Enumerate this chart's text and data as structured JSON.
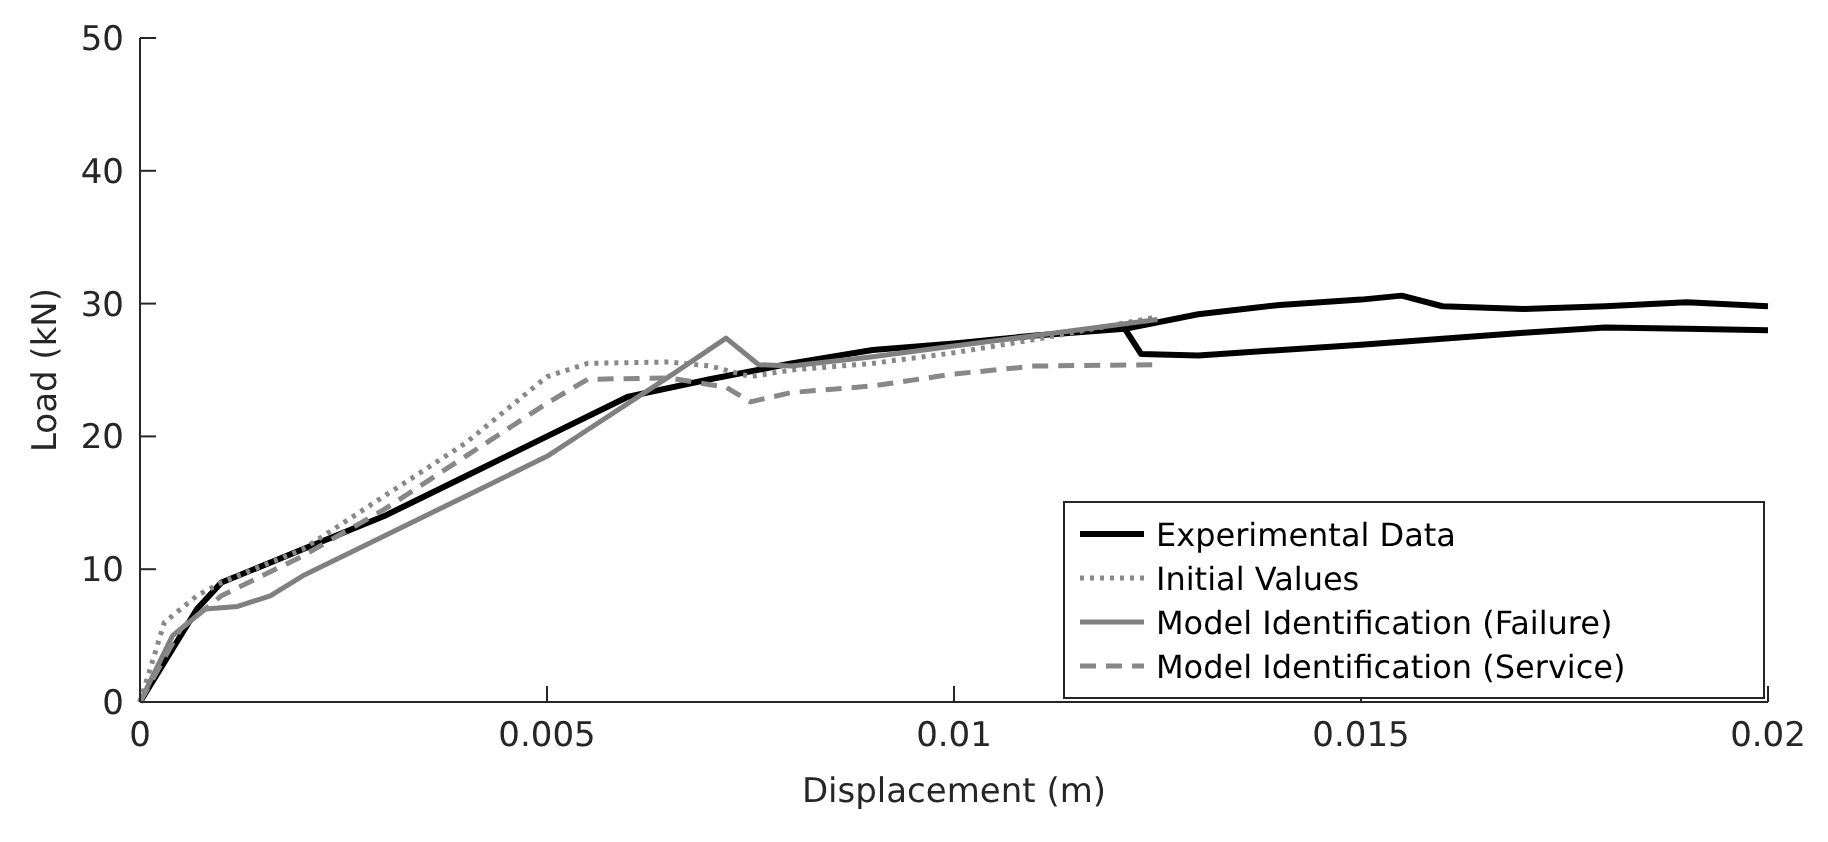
{
  "chart_data": {
    "type": "line",
    "xlabel": "Displacement (m)",
    "ylabel": "Load (kN)",
    "xlim": [
      0,
      0.02
    ],
    "ylim": [
      0,
      50
    ],
    "xticks": [
      0,
      0.005,
      0.01,
      0.015,
      0.02
    ],
    "yticks": [
      0,
      10,
      20,
      30,
      40,
      50
    ],
    "grid": false,
    "legend": "bottom right",
    "series": [
      {
        "name": "Experimental Data",
        "color": "#000000",
        "line_style": "solid",
        "x": [
          0,
          0.0007,
          0.001,
          0.002,
          0.003,
          0.004,
          0.005,
          0.006,
          0.007,
          0.008,
          0.009,
          0.01,
          0.011,
          0.0121,
          0.013,
          0.014,
          0.015,
          0.0155,
          0.016,
          0.017,
          0.018,
          0.019,
          0.02,
          null,
          0.0121,
          0.0123,
          0.013,
          0.015,
          0.017,
          0.018,
          0.019,
          0.02
        ],
        "values": [
          0,
          7,
          9,
          11.5,
          14,
          17,
          20,
          23,
          24.3,
          25.5,
          26.5,
          27,
          27.6,
          28.1,
          29.2,
          29.9,
          30.3,
          30.6,
          29.8,
          29.6,
          29.8,
          30.1,
          29.8,
          null,
          28.1,
          26.2,
          26.1,
          26.9,
          27.8,
          28.2,
          28.1,
          28
        ]
      },
      {
        "name": "Initial Values",
        "color": "#888888",
        "line_style": "dotted",
        "x": [
          0,
          0.0003,
          0.0007,
          0.001,
          0.002,
          0.003,
          0.004,
          0.005,
          0.0055,
          0.0065,
          0.007,
          0.0075,
          0.008,
          0.009,
          0.01,
          0.011,
          0.0125
        ],
        "values": [
          0,
          6,
          8,
          9,
          11.5,
          15.5,
          19.5,
          24.5,
          25.5,
          25.6,
          25.3,
          24.5,
          25,
          25.5,
          26.3,
          27.3,
          29
        ]
      },
      {
        "name": "Model Identification (Failure)",
        "color": "#808080",
        "line_style": "solid",
        "x": [
          0,
          0.0004,
          0.0008,
          0.0012,
          0.0016,
          0.002,
          0.003,
          0.004,
          0.005,
          0.0055,
          0.006,
          0.0065,
          0.0072,
          0.0076,
          0.008,
          0.009,
          0.01,
          0.011,
          0.0125
        ],
        "values": [
          0,
          5,
          7,
          7.2,
          8,
          9.5,
          12.5,
          15.5,
          18.5,
          20.5,
          22.5,
          24.5,
          27.4,
          25.4,
          25.3,
          26,
          26.8,
          27.6,
          28.8
        ]
      },
      {
        "name": "Model Identification (Service)",
        "color": "#888888",
        "line_style": "dashed",
        "x": [
          0,
          0.0005,
          0.001,
          0.002,
          0.003,
          0.004,
          0.005,
          0.0055,
          0.0065,
          0.0072,
          0.0075,
          0.008,
          0.009,
          0.01,
          0.011,
          0.0125
        ],
        "values": [
          0,
          5.5,
          8,
          11,
          14.5,
          18.5,
          22.5,
          24.3,
          24.4,
          23.7,
          22.6,
          23.3,
          23.8,
          24.7,
          25.3,
          25.4
        ]
      }
    ]
  }
}
